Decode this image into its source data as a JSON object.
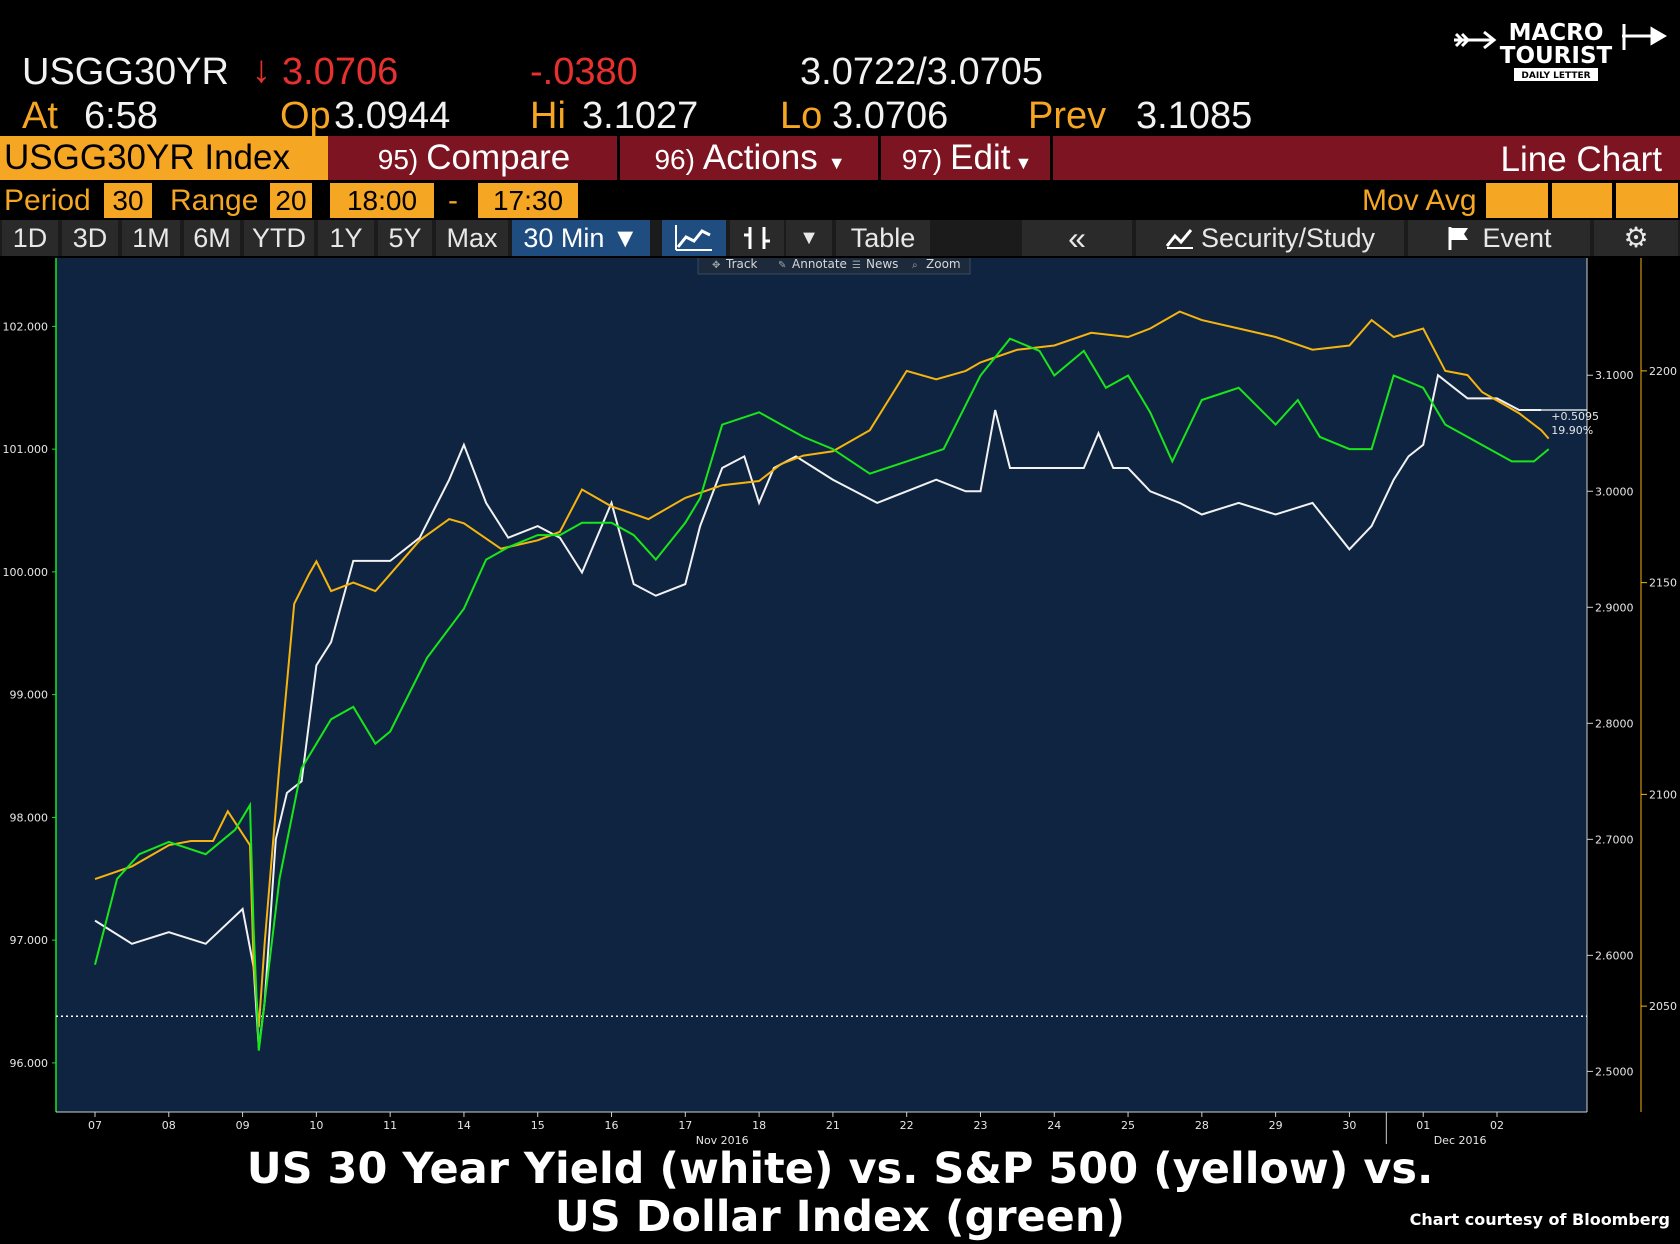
{
  "logo": {
    "line1": "MACRO",
    "line2": "TOURIST",
    "line3": "DAILY LETTER"
  },
  "quote": {
    "ticker": "USGG30YR",
    "arrow": "↓",
    "last": "3.0706",
    "change": "-.0380",
    "bid_ask": "3.0722/3.0705",
    "at_label": "At",
    "at_time": "6:58",
    "op_label": "Op",
    "op": "3.0944",
    "hi_label": "Hi",
    "hi": "3.1027",
    "lo_label": "Lo",
    "lo": "3.0706",
    "prev_label": "Prev",
    "prev": "3.1085"
  },
  "toolbar": {
    "security": "USGG30YR Index",
    "compare_num": "95)",
    "compare": "Compare",
    "actions_num": "96)",
    "actions": "Actions",
    "edit_num": "97)",
    "edit": "Edit",
    "view": "Line Chart"
  },
  "settings": {
    "period_label": "Period",
    "period": "30",
    "range_label": "Range",
    "range": "20",
    "start": "18:00",
    "dash": "-",
    "end": "17:30",
    "movavg_label": "Mov Avg"
  },
  "tabs": [
    "1D",
    "3D",
    "1M",
    "6M",
    "YTD",
    "1Y",
    "5Y",
    "Max"
  ],
  "interval": "30 Min ▼",
  "tools": {
    "table": "Table",
    "back": "«",
    "security_study": "Security/Study",
    "event": "Event",
    "settings_icon": "gear-icon",
    "line_icon": "line-chart-icon",
    "bars_icon": "bar-chart-icon",
    "flag_icon": "flag-icon"
  },
  "chart_menu": [
    "Track",
    "Annotate",
    "News",
    "Zoom"
  ],
  "chart_data": {
    "type": "line",
    "x_ticks": [
      "07",
      "08",
      "09",
      "10",
      "11",
      "14",
      "15",
      "16",
      "17",
      "18",
      "21",
      "22",
      "23",
      "24",
      "25",
      "28",
      "29",
      "30",
      "01",
      "02"
    ],
    "month_labels": [
      "Nov 2016",
      "Dec 2016"
    ],
    "left_axis": {
      "ticks": [
        "96.000",
        "97.000",
        "98.000",
        "99.000",
        "100.000",
        "101.000",
        "102.000"
      ],
      "range": [
        95.6,
        102.5
      ]
    },
    "right_axis_yield": {
      "ticks": [
        "2.5000",
        "2.6000",
        "2.7000",
        "2.8000",
        "2.9000",
        "3.0000",
        "3.1000"
      ],
      "range": [
        2.465,
        3.195
      ]
    },
    "right_axis_spx": {
      "ticks": [
        "2050",
        "2100",
        "2150",
        "2200"
      ],
      "range": [
        2025,
        2225
      ]
    },
    "annotation": {
      "line1": "+0.5095",
      "line2": "19.90%"
    },
    "series": [
      {
        "color": "#f2f2f2",
        "points": [
          [
            0,
            2.63
          ],
          [
            0.5,
            2.61
          ],
          [
            1,
            2.62
          ],
          [
            1.5,
            2.61
          ],
          [
            2,
            2.64
          ],
          [
            2.15,
            2.59
          ],
          [
            2.22,
            2.52
          ],
          [
            2.3,
            2.56
          ],
          [
            2.45,
            2.7
          ],
          [
            2.6,
            2.74
          ],
          [
            2.8,
            2.75
          ],
          [
            3,
            2.85
          ],
          [
            3.2,
            2.87
          ],
          [
            3.5,
            2.94
          ],
          [
            3.8,
            2.94
          ],
          [
            4,
            2.94
          ],
          [
            4.4,
            2.96
          ],
          [
            4.8,
            3.01
          ],
          [
            5,
            3.04
          ],
          [
            5.3,
            2.99
          ],
          [
            5.6,
            2.96
          ],
          [
            6,
            2.97
          ],
          [
            6.3,
            2.96
          ],
          [
            6.6,
            2.93
          ],
          [
            7,
            2.99
          ],
          [
            7.3,
            2.92
          ],
          [
            7.6,
            2.91
          ],
          [
            8,
            2.92
          ],
          [
            8.2,
            2.97
          ],
          [
            8.5,
            3.02
          ],
          [
            8.8,
            3.03
          ],
          [
            9,
            2.99
          ],
          [
            9.2,
            3.02
          ],
          [
            9.5,
            3.03
          ],
          [
            10,
            3.01
          ],
          [
            10.3,
            3.0
          ],
          [
            10.6,
            2.99
          ],
          [
            11,
            3.0
          ],
          [
            11.4,
            3.01
          ],
          [
            11.8,
            3.0
          ],
          [
            12,
            3.0
          ],
          [
            12.2,
            3.07
          ],
          [
            12.4,
            3.02
          ],
          [
            13,
            3.02
          ],
          [
            13.4,
            3.02
          ],
          [
            13.6,
            3.05
          ],
          [
            13.8,
            3.02
          ],
          [
            14,
            3.02
          ],
          [
            14.3,
            3.0
          ],
          [
            14.7,
            2.99
          ],
          [
            15,
            2.98
          ],
          [
            15.5,
            2.99
          ],
          [
            16,
            2.98
          ],
          [
            16.5,
            2.99
          ],
          [
            17,
            2.95
          ],
          [
            17.3,
            2.97
          ],
          [
            17.6,
            3.01
          ],
          [
            17.8,
            3.03
          ],
          [
            18,
            3.04
          ],
          [
            18.2,
            3.1
          ],
          [
            18.4,
            3.09
          ],
          [
            18.6,
            3.08
          ],
          [
            19,
            3.08
          ],
          [
            19.3,
            3.07
          ],
          [
            19.6,
            3.07
          ]
        ]
      },
      {
        "color": "#f5b40f",
        "points": [
          [
            0,
            2080
          ],
          [
            0.5,
            2083
          ],
          [
            0.8,
            2086
          ],
          [
            1,
            2088
          ],
          [
            1.3,
            2089
          ],
          [
            1.6,
            2089
          ],
          [
            1.8,
            2096
          ],
          [
            2.1,
            2088
          ],
          [
            2.15,
            2060
          ],
          [
            2.22,
            2045
          ],
          [
            2.3,
            2065
          ],
          [
            2.5,
            2107
          ],
          [
            2.7,
            2145
          ],
          [
            2.9,
            2152
          ],
          [
            3,
            2155
          ],
          [
            3.2,
            2148
          ],
          [
            3.5,
            2150
          ],
          [
            3.8,
            2148
          ],
          [
            4,
            2152
          ],
          [
            4.4,
            2160
          ],
          [
            4.8,
            2165
          ],
          [
            5,
            2164
          ],
          [
            5.5,
            2158
          ],
          [
            6,
            2160
          ],
          [
            6.3,
            2162
          ],
          [
            6.6,
            2172
          ],
          [
            7,
            2168
          ],
          [
            7.5,
            2165
          ],
          [
            8,
            2170
          ],
          [
            8.5,
            2173
          ],
          [
            9,
            2174
          ],
          [
            9.3,
            2178
          ],
          [
            9.6,
            2180
          ],
          [
            10,
            2181
          ],
          [
            10.5,
            2186
          ],
          [
            11,
            2200
          ],
          [
            11.4,
            2198
          ],
          [
            11.8,
            2200
          ],
          [
            12,
            2202
          ],
          [
            12.5,
            2205
          ],
          [
            13,
            2206
          ],
          [
            13.5,
            2209
          ],
          [
            14,
            2208
          ],
          [
            14.3,
            2210
          ],
          [
            14.7,
            2214
          ],
          [
            15,
            2212
          ],
          [
            15.5,
            2210
          ],
          [
            16,
            2208
          ],
          [
            16.5,
            2205
          ],
          [
            17,
            2206
          ],
          [
            17.3,
            2212
          ],
          [
            17.6,
            2208
          ],
          [
            18,
            2210
          ],
          [
            18.3,
            2200
          ],
          [
            18.6,
            2199
          ],
          [
            18.8,
            2195
          ],
          [
            19,
            2193
          ],
          [
            19.3,
            2190
          ],
          [
            19.6,
            2186
          ],
          [
            19.7,
            2184
          ]
        ]
      },
      {
        "color": "#19e61a",
        "points": [
          [
            0,
            96.8
          ],
          [
            0.3,
            97.5
          ],
          [
            0.6,
            97.7
          ],
          [
            1,
            97.8
          ],
          [
            1.5,
            97.7
          ],
          [
            1.9,
            97.9
          ],
          [
            2.1,
            98.1
          ],
          [
            2.15,
            97.1
          ],
          [
            2.22,
            96.1
          ],
          [
            2.3,
            96.5
          ],
          [
            2.5,
            97.5
          ],
          [
            2.8,
            98.4
          ],
          [
            3,
            98.6
          ],
          [
            3.2,
            98.8
          ],
          [
            3.5,
            98.9
          ],
          [
            3.8,
            98.6
          ],
          [
            4,
            98.7
          ],
          [
            4.5,
            99.3
          ],
          [
            5,
            99.7
          ],
          [
            5.3,
            100.1
          ],
          [
            5.6,
            100.2
          ],
          [
            6,
            100.3
          ],
          [
            6.3,
            100.3
          ],
          [
            6.6,
            100.4
          ],
          [
            7,
            100.4
          ],
          [
            7.3,
            100.3
          ],
          [
            7.6,
            100.1
          ],
          [
            8,
            100.4
          ],
          [
            8.2,
            100.6
          ],
          [
            8.5,
            101.2
          ],
          [
            9,
            101.3
          ],
          [
            9.3,
            101.2
          ],
          [
            9.6,
            101.1
          ],
          [
            10,
            101.0
          ],
          [
            10.5,
            100.8
          ],
          [
            11,
            100.9
          ],
          [
            11.5,
            101.0
          ],
          [
            12,
            101.6
          ],
          [
            12.4,
            101.9
          ],
          [
            12.8,
            101.8
          ],
          [
            13,
            101.6
          ],
          [
            13.4,
            101.8
          ],
          [
            13.7,
            101.5
          ],
          [
            14,
            101.6
          ],
          [
            14.3,
            101.3
          ],
          [
            14.6,
            100.9
          ],
          [
            15,
            101.4
          ],
          [
            15.5,
            101.5
          ],
          [
            16,
            101.2
          ],
          [
            16.3,
            101.4
          ],
          [
            16.6,
            101.1
          ],
          [
            17,
            101.0
          ],
          [
            17.3,
            101.0
          ],
          [
            17.6,
            101.6
          ],
          [
            18,
            101.5
          ],
          [
            18.3,
            101.2
          ],
          [
            18.6,
            101.1
          ],
          [
            18.9,
            101.0
          ],
          [
            19.2,
            100.9
          ],
          [
            19.5,
            100.9
          ],
          [
            19.7,
            101.0
          ]
        ]
      }
    ],
    "dotted_level": 96.38
  },
  "caption": {
    "line1": "US 30 Year Yield (white) vs. S&P 500 (yellow) vs.",
    "line2": "US Dollar Index (green)",
    "credit": "Chart courtesy of Bloomberg"
  }
}
